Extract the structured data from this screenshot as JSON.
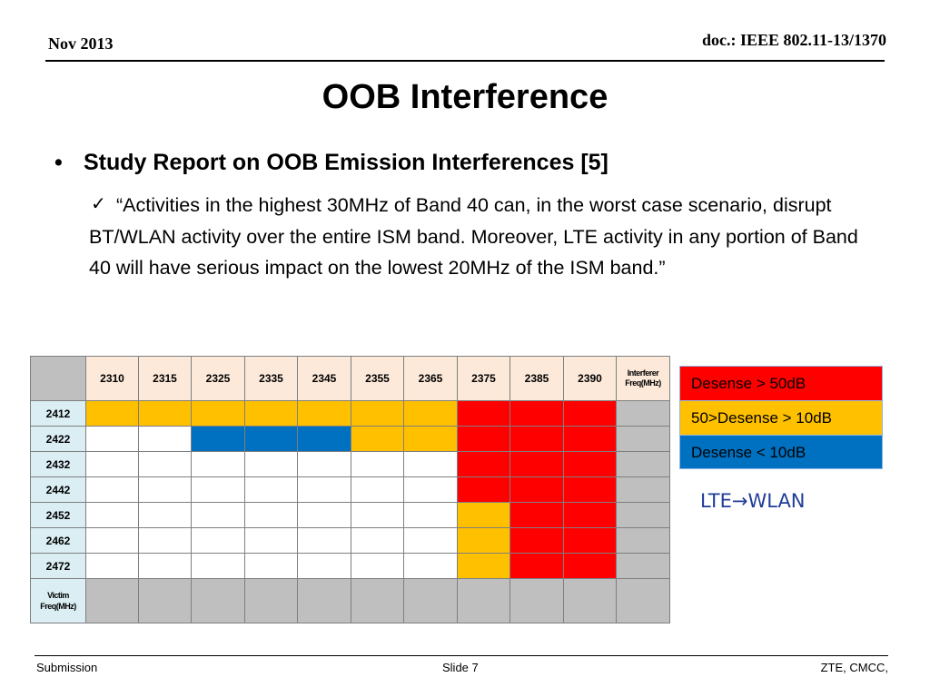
{
  "header": {
    "date": "Nov 2013",
    "doc": "doc.: IEEE 802.11-13/1370"
  },
  "title": "OOB Interference",
  "bullet": {
    "glyph": "•",
    "text": "Study Report on OOB Emission Interferences [5]"
  },
  "sub": {
    "check": "✓",
    "text": "“Activities in the highest 30MHz of Band 40 can, in the worst case scenario, disrupt BT/WLAN activity over the entire ISM band. Moreover, LTE activity in any portion of Band 40 will have serious impact on the lowest 20MHz of the ISM band.”"
  },
  "table": {
    "columns": [
      "2310",
      "2315",
      "2325",
      "2335",
      "2345",
      "2355",
      "2365",
      "2375",
      "2385",
      "2390"
    ],
    "col_end_label": [
      "Interferer",
      "Freq(MHz)"
    ],
    "rows": [
      {
        "label": "2412",
        "cells": [
          "o",
          "o",
          "o",
          "o",
          "o",
          "o",
          "o",
          "r",
          "r",
          "r",
          "g"
        ]
      },
      {
        "label": "2422",
        "cells": [
          "w",
          "w",
          "b",
          "b",
          "b",
          "o",
          "o",
          "r",
          "r",
          "r",
          "g"
        ]
      },
      {
        "label": "2432",
        "cells": [
          "w",
          "w",
          "w",
          "w",
          "w",
          "w",
          "w",
          "r",
          "r",
          "r",
          "g"
        ]
      },
      {
        "label": "2442",
        "cells": [
          "w",
          "w",
          "w",
          "w",
          "w",
          "w",
          "w",
          "r",
          "r",
          "r",
          "g"
        ]
      },
      {
        "label": "2452",
        "cells": [
          "w",
          "w",
          "w",
          "w",
          "w",
          "w",
          "w",
          "o",
          "r",
          "r",
          "g"
        ]
      },
      {
        "label": "2462",
        "cells": [
          "w",
          "w",
          "w",
          "w",
          "w",
          "w",
          "w",
          "o",
          "r",
          "r",
          "g"
        ]
      },
      {
        "label": "2472",
        "cells": [
          "w",
          "w",
          "w",
          "w",
          "w",
          "w",
          "w",
          "o",
          "r",
          "r",
          "g"
        ]
      }
    ],
    "row_end_label": [
      "Victim",
      "Freq(MHz)"
    ],
    "colors": {
      "o": "#ffc000",
      "r": "#ff0000",
      "b": "#0070c0",
      "w": "#ffffff",
      "g": "#bfbfbf"
    }
  },
  "legend": [
    {
      "label": "Desense > 50dB",
      "color": "#ff0000"
    },
    {
      "label": "50>Desense > 10dB",
      "color": "#ffc000"
    },
    {
      "label": "Desense < 10dB",
      "color": "#0070c0"
    }
  ],
  "direction": "LTE→WLAN",
  "footer": {
    "left": "Submission",
    "center": "Slide 7",
    "right": "ZTE, CMCC,"
  }
}
